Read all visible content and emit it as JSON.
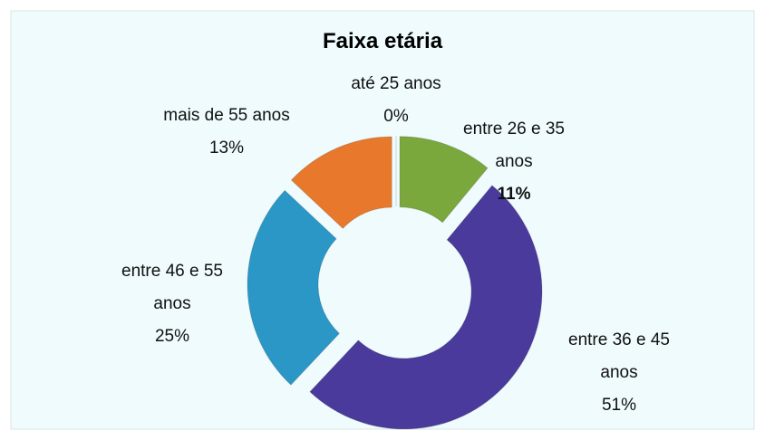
{
  "chart_data": {
    "type": "doughnut",
    "title": "Faixa etária",
    "categories": [
      "até 25 anos",
      "entre 26 e 35 anos",
      "entre 36 e 45 anos",
      "entre 46 e 55 anos",
      "mais de 55 anos"
    ],
    "values": [
      0,
      11,
      51,
      25,
      13
    ],
    "value_labels": [
      "0%",
      "11%",
      "51%",
      "25%",
      "13%"
    ],
    "colors": [
      "#4f81bd",
      "#7aa83c",
      "#4a3a9c",
      "#2b97c6",
      "#e8792c"
    ]
  }
}
